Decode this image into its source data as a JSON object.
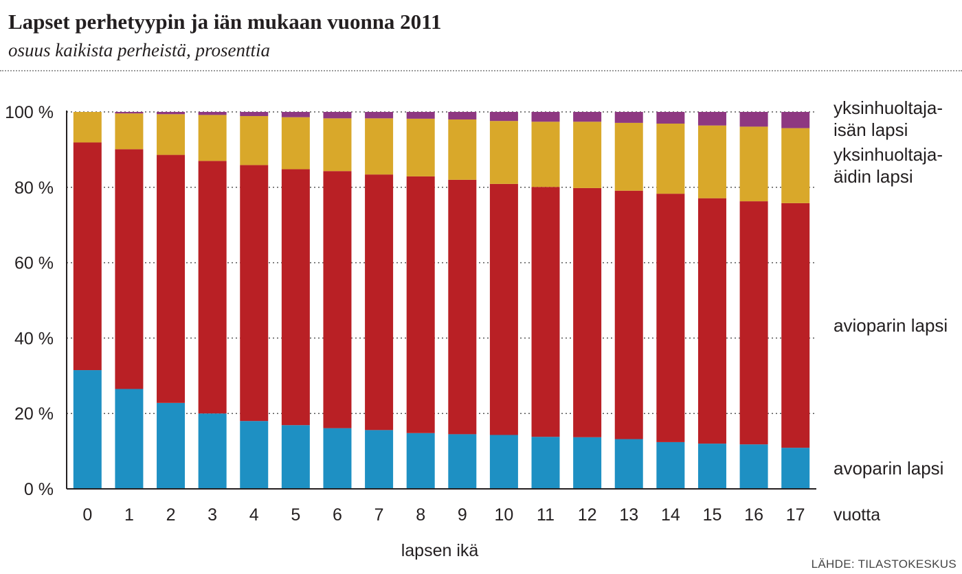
{
  "header": {
    "title": "Lapset perhetyypin ja iän mukaan vuonna 2011",
    "subtitle": "osuus kaikista perheistä, prosenttia"
  },
  "source": "LÄHDE: TILASTOKESKUS",
  "chart_data": {
    "type": "bar",
    "stacked": true,
    "categories": [
      "0",
      "1",
      "2",
      "3",
      "4",
      "5",
      "6",
      "7",
      "8",
      "9",
      "10",
      "11",
      "12",
      "13",
      "14",
      "15",
      "16",
      "17"
    ],
    "x_unit_label": "vuotta",
    "xlabel": "lapsen ikä",
    "ylabel": "",
    "ylim": [
      0,
      100
    ],
    "yticks": [
      0,
      20,
      40,
      60,
      80,
      100
    ],
    "ytick_labels": [
      "0 %",
      "20 %",
      "40 %",
      "60 %",
      "80 %",
      "100 %"
    ],
    "grid": "dotted horizontal",
    "legend": "right, labels beside stacks",
    "series": [
      {
        "name": "avoparin lapsi",
        "color": "#1e90c3",
        "label_lines": [
          "avoparin lapsi"
        ],
        "values": [
          31.5,
          26.5,
          22.8,
          20.0,
          18.0,
          16.9,
          16.1,
          15.6,
          14.8,
          14.5,
          14.3,
          13.8,
          13.7,
          13.2,
          12.4,
          12.0,
          11.8,
          10.9
        ]
      },
      {
        "name": "avioparin lapsi",
        "color": "#b92025",
        "label_lines": [
          "avioparin lapsi"
        ],
        "values": [
          60.4,
          63.6,
          65.8,
          67.0,
          67.9,
          67.9,
          68.2,
          67.8,
          68.1,
          67.5,
          66.6,
          66.3,
          66.1,
          65.9,
          65.9,
          65.1,
          64.5,
          64.9
        ]
      },
      {
        "name": "yksinhuoltaja-äidin lapsi",
        "color": "#d9a82a",
        "label_lines": [
          "yksinhuoltaja-",
          "äidin lapsi"
        ],
        "values": [
          8.1,
          9.5,
          10.8,
          12.2,
          13.0,
          13.8,
          14.0,
          14.9,
          15.3,
          16.0,
          16.7,
          17.3,
          17.6,
          18.0,
          18.6,
          19.3,
          19.8,
          19.9
        ]
      },
      {
        "name": "yksinhuoltaja-isän lapsi",
        "color": "#8e3881",
        "label_lines": [
          "yksinhuoltaja-",
          "isän lapsi"
        ],
        "values": [
          0.0,
          0.4,
          0.6,
          0.8,
          1.1,
          1.4,
          1.7,
          1.7,
          1.8,
          2.0,
          2.4,
          2.6,
          2.6,
          2.9,
          3.1,
          3.6,
          3.9,
          4.3
        ]
      }
    ]
  }
}
